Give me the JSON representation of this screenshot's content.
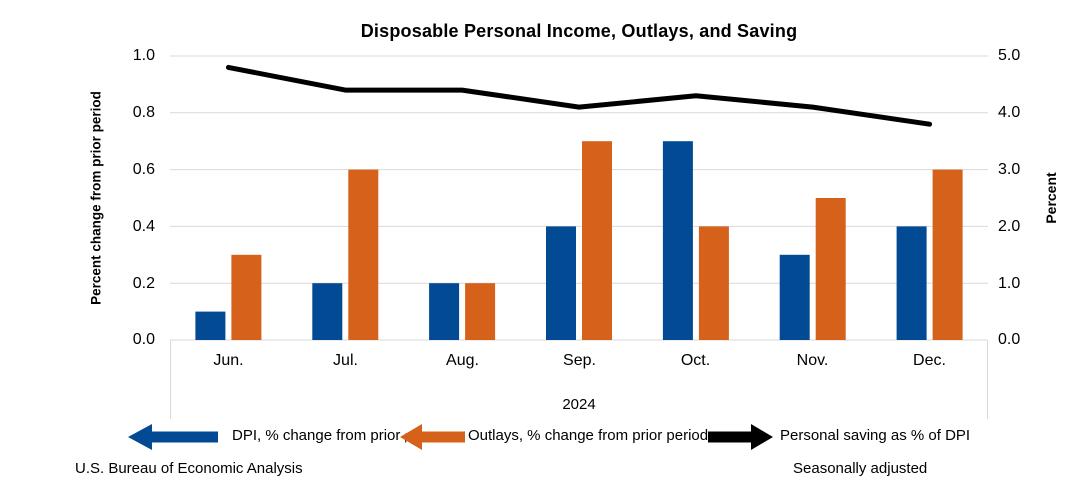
{
  "title": "Disposable Personal Income, Outlays, and Saving",
  "chart_data": {
    "type": "bar+line combo",
    "title": "Disposable Personal Income, Outlays, and Saving",
    "categories": [
      "Jun.",
      "Jul.",
      "Aug.",
      "Sep.",
      "Oct.",
      "Nov.",
      "Dec."
    ],
    "year_label": "2024",
    "series": [
      {
        "name": "DPI, % change from prior period",
        "type": "bar",
        "axis": "left",
        "color": "#024A94",
        "values": [
          0.1,
          0.2,
          0.2,
          0.4,
          0.7,
          0.3,
          0.4
        ]
      },
      {
        "name": "Outlays, % change from prior period",
        "type": "bar",
        "axis": "left",
        "color": "#D6611A",
        "values": [
          0.3,
          0.6,
          0.2,
          0.7,
          0.4,
          0.5,
          0.6
        ]
      },
      {
        "name": "Personal saving as % of DPI",
        "type": "line",
        "axis": "right",
        "color": "#000000",
        "values": [
          4.8,
          4.4,
          4.4,
          4.1,
          4.3,
          4.1,
          3.8
        ]
      }
    ],
    "left_axis": {
      "title": "Percent change from prior period",
      "min": 0.0,
      "max": 1.0,
      "ticks": [
        "1.0",
        "0.8",
        "0.6",
        "0.4",
        "0.2",
        "0.0"
      ]
    },
    "right_axis": {
      "title": "Percent",
      "min": 0.0,
      "max": 5.0,
      "ticks": [
        "5.0",
        "4.0",
        "3.0",
        "2.0",
        "1.0",
        "0.0"
      ]
    },
    "grid": "horizontal gridlines on",
    "legend_position": "bottom"
  },
  "legend": {
    "items": [
      {
        "id": "dpi",
        "color": "#024A94",
        "arrow_direction": "left",
        "label": "DPI, % change from prior",
        "label_suffix_small": "period"
      },
      {
        "id": "outlays",
        "color": "#D6611A",
        "arrow_direction": "left",
        "label": "Outlays, % change from prior period"
      },
      {
        "id": "saving",
        "color": "#000000",
        "arrow_direction": "right",
        "label": "Personal saving as % of DPI"
      }
    ]
  },
  "footer": {
    "source": "U.S. Bureau of Economic Analysis",
    "note": "Seasonally adjusted"
  }
}
